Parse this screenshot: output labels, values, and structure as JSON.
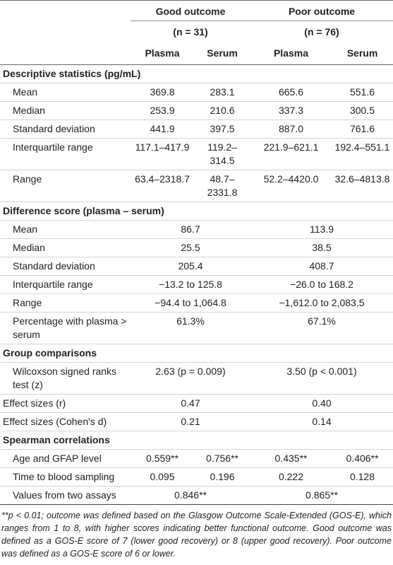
{
  "header": {
    "groups": [
      "Good outcome",
      "Poor outcome"
    ],
    "group_n": [
      "(n = 31)",
      "(n = 76)"
    ],
    "columns": [
      "Plasma",
      "Serum",
      "Plasma",
      "Serum"
    ]
  },
  "sections": [
    {
      "title": "Descriptive statistics (pg/mL)",
      "rows": [
        {
          "label": "Mean",
          "cells": [
            "369.8",
            "283.1",
            "665.6",
            "551.6"
          ]
        },
        {
          "label": "Median",
          "cells": [
            "253.9",
            "210.6",
            "337.3",
            "300.5"
          ]
        },
        {
          "label": "Standard deviation",
          "cells": [
            "441.9",
            "397.5",
            "887.0",
            "761.6"
          ]
        },
        {
          "label": "Interquartile range",
          "cells": [
            "117.1–417.9",
            "119.2–314.5",
            "221.9–621.1",
            "192.4–551.1"
          ]
        },
        {
          "label": "Range",
          "cells": [
            "63.4–2318.7",
            "48.7–2331.8",
            "52.2–4420.0",
            "32.6–4813.8"
          ]
        }
      ]
    },
    {
      "title": "Difference score (plasma – serum)",
      "rows": [
        {
          "label": "Mean",
          "cells": [
            "86.7",
            "113.9"
          ]
        },
        {
          "label": "Median",
          "cells": [
            "25.5",
            "38.5"
          ]
        },
        {
          "label": "Standard deviation",
          "cells": [
            "205.4",
            "408.7"
          ]
        },
        {
          "label": "Interquartile range",
          "cells": [
            "−13.2 to 125.8",
            "−26.0 to 168.2"
          ]
        },
        {
          "label": "Range",
          "cells": [
            "−94.4 to 1,064.8",
            "−1,612.0 to 2,083.5"
          ]
        },
        {
          "label": "Percentage with plasma > serum",
          "cells": [
            "61.3%",
            "67.1%"
          ]
        }
      ]
    },
    {
      "title": "Group comparisons",
      "rows": [
        {
          "label": "Wilcoxson signed ranks test (z)",
          "cells": [
            "2.63 (p = 0.009)",
            "3.50 (p < 0.001)"
          ]
        }
      ],
      "outer_rows": [
        {
          "label": "Effect sizes (r)",
          "cells": [
            "0.47",
            "0.40"
          ]
        },
        {
          "label": "Effect sizes (Cohen's d)",
          "cells": [
            "0.21",
            "0.14"
          ]
        }
      ]
    },
    {
      "title": "Spearman correlations",
      "rows": [
        {
          "label": "Age and GFAP level",
          "cells": [
            "0.559**",
            "0.756**",
            "0.435**",
            "0.406**"
          ]
        },
        {
          "label": "Time to blood sampling",
          "cells": [
            "0.095",
            "0.196",
            "0.222",
            "0.128"
          ]
        },
        {
          "label": "Values from two assays",
          "cells": [
            "0.846**",
            "0.865**"
          ]
        }
      ]
    }
  ],
  "footnote": "**p < 0.01; outcome was defined based on the Glasgow Outcome Scale-Extended (GOS-E), which ranges from 1 to 8, with higher scores indicating better functional outcome. Good outcome was defined as a GOS-E score of 7 (lower good recovery) or 8 (upper good recovery). Poor outcome was defined as a GOS-E score of 6 or lower."
}
